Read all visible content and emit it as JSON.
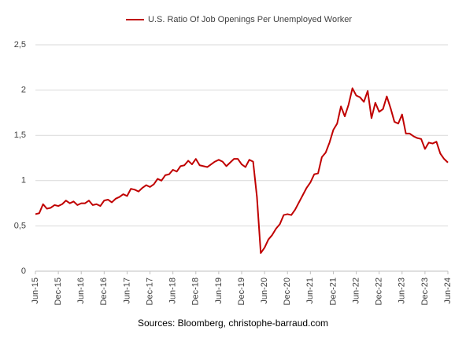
{
  "chart_data": {
    "type": "line",
    "series": [
      {
        "name": "U.S. Ratio Of Job Openings Per Unemployed Worker",
        "color": "#c00000",
        "values": [
          0.63,
          0.64,
          0.74,
          0.69,
          0.7,
          0.73,
          0.72,
          0.74,
          0.78,
          0.75,
          0.77,
          0.73,
          0.75,
          0.75,
          0.78,
          0.73,
          0.74,
          0.72,
          0.78,
          0.79,
          0.76,
          0.8,
          0.82,
          0.85,
          0.83,
          0.91,
          0.9,
          0.88,
          0.92,
          0.95,
          0.93,
          0.96,
          1.02,
          1.0,
          1.06,
          1.07,
          1.12,
          1.1,
          1.16,
          1.17,
          1.22,
          1.18,
          1.24,
          1.17,
          1.16,
          1.15,
          1.18,
          1.21,
          1.23,
          1.21,
          1.16,
          1.2,
          1.24,
          1.24,
          1.18,
          1.15,
          1.23,
          1.21,
          0.82,
          0.2,
          0.26,
          0.35,
          0.4,
          0.47,
          0.52,
          0.62,
          0.63,
          0.62,
          0.68,
          0.76,
          0.84,
          0.92,
          0.98,
          1.07,
          1.08,
          1.26,
          1.31,
          1.42,
          1.56,
          1.63,
          1.82,
          1.71,
          1.84,
          2.02,
          1.94,
          1.92,
          1.87,
          1.99,
          1.69,
          1.86,
          1.76,
          1.79,
          1.93,
          1.8,
          1.65,
          1.63,
          1.73,
          1.52,
          1.52,
          1.49,
          1.47,
          1.46,
          1.35,
          1.42,
          1.41,
          1.43,
          1.3,
          1.24,
          1.2
        ]
      }
    ],
    "categories": [
      "Jun-15",
      null,
      null,
      null,
      null,
      null,
      "Dec-15",
      null,
      null,
      null,
      null,
      null,
      "Jun-16",
      null,
      null,
      null,
      null,
      null,
      "Dec-16",
      null,
      null,
      null,
      null,
      null,
      "Jun-17",
      null,
      null,
      null,
      null,
      null,
      "Dec-17",
      null,
      null,
      null,
      null,
      null,
      "Jun-18",
      null,
      null,
      null,
      null,
      null,
      "Dec-18",
      null,
      null,
      null,
      null,
      null,
      "Jun-19",
      null,
      null,
      null,
      null,
      null,
      "Dec-19",
      null,
      null,
      null,
      null,
      null,
      "Jun-20",
      null,
      null,
      null,
      null,
      null,
      "Dec-20",
      null,
      null,
      null,
      null,
      null,
      "Jun-21",
      null,
      null,
      null,
      null,
      null,
      "Dec-21",
      null,
      null,
      null,
      null,
      null,
      "Jun-22",
      null,
      null,
      null,
      null,
      null,
      "Dec-22",
      null,
      null,
      null,
      null,
      null,
      "Jun-23",
      null,
      null,
      null,
      null,
      null,
      "Dec-23",
      null,
      null,
      null,
      null,
      null,
      "Jun-24"
    ],
    "ylim": [
      0,
      2.5
    ],
    "yticks": [
      0,
      {
        "value": 0.5,
        "label": "0,5"
      },
      1,
      {
        "value": 1.5,
        "label": "1,5"
      },
      2,
      {
        "value": 2.5,
        "label": "2,5"
      }
    ],
    "grid": true,
    "legend": "top",
    "source": "Sources: Bloomberg, christophe-barraud.com"
  }
}
